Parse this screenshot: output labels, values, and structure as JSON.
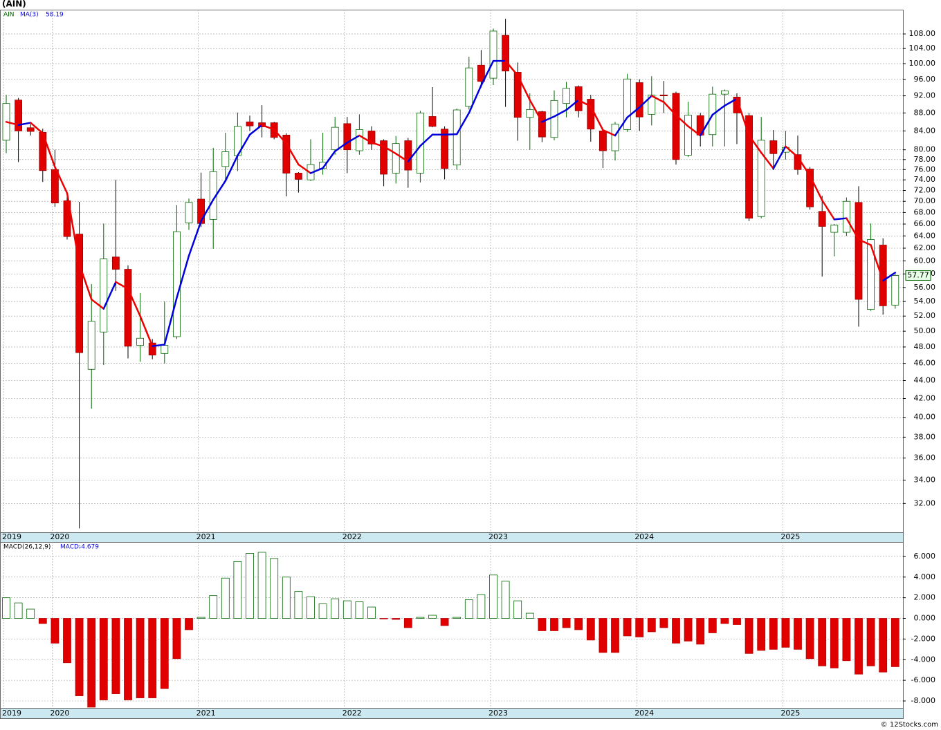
{
  "footer": "© 12Stocks.com",
  "chart_data": [
    {
      "type": "candlestick",
      "title": "(AIN)",
      "ticker": "AIN",
      "log_scale": true,
      "grid": true,
      "up_color": "#006400",
      "down_color": "#e00000",
      "ma_up_color": "#0000dd",
      "ma_down_color": "#ee0000",
      "categories": [
        "2019",
        null,
        null,
        null,
        "2020",
        null,
        null,
        null,
        null,
        null,
        null,
        null,
        null,
        null,
        null,
        null,
        "2021",
        null,
        null,
        null,
        null,
        null,
        null,
        null,
        null,
        null,
        null,
        null,
        "2022",
        null,
        null,
        null,
        null,
        null,
        null,
        null,
        null,
        null,
        null,
        null,
        "2023",
        null,
        null,
        null,
        null,
        null,
        null,
        null,
        null,
        null,
        null,
        null,
        "2024",
        null,
        null,
        null,
        null,
        null,
        null,
        null,
        null,
        null,
        null,
        null,
        "2025",
        null,
        null,
        null,
        null,
        null,
        null,
        null,
        null,
        null
      ],
      "open": [
        82,
        91,
        84.7,
        83.7,
        76,
        70.1,
        64.3,
        45.3,
        49.9,
        60.6,
        58.7,
        48.2,
        48.5,
        47.2,
        49.3,
        66.2,
        70.4,
        66.8,
        76.6,
        78.8,
        86,
        85.8,
        85.8,
        83.1,
        75.3,
        74,
        76.2,
        80,
        85.6,
        79.8,
        84,
        81.9,
        75.3,
        81.9,
        75.3,
        87.2,
        84.4,
        76.9,
        89.5,
        99.6,
        96.3,
        107.6,
        97.8,
        87,
        88.3,
        82.6,
        90.2,
        94.2,
        91.2,
        84,
        79.8,
        84.3,
        95.2,
        87.7,
        92.2,
        92.6,
        78.9,
        87.4,
        83.2,
        92.4,
        91.7,
        87.4,
        67.3,
        81.9,
        79.5,
        79,
        76.1,
        68.2,
        64.6,
        64.6,
        69.8,
        52.9,
        62.5,
        53.5
      ],
      "high": [
        92.2,
        91.5,
        85.5,
        84.5,
        80,
        71,
        69.9,
        56.5,
        66.1,
        74,
        59.3,
        55.2,
        49,
        54,
        69.3,
        70.5,
        75.4,
        80.4,
        83.6,
        88.1,
        87.4,
        89.8,
        86,
        83.5,
        75.5,
        82.2,
        83.6,
        87.1,
        87.1,
        87.7,
        85,
        82.2,
        82.9,
        82.5,
        88.5,
        94.1,
        85,
        89,
        101.8,
        103.6,
        109.5,
        112.3,
        100.3,
        92.6,
        88.5,
        93.3,
        95.4,
        94.5,
        92.2,
        84.5,
        86,
        97.4,
        96,
        96.8,
        95.6,
        93,
        90.6,
        88,
        94.2,
        93.5,
        92.6,
        88,
        87.1,
        84.2,
        84,
        83,
        76.5,
        71,
        66,
        70.7,
        72.8,
        66.1,
        63.6,
        58
      ],
      "low": [
        79.3,
        77.5,
        83,
        73.6,
        69,
        63.4,
        30,
        40.9,
        45.8,
        55.5,
        46.6,
        46.2,
        46.5,
        46,
        49,
        65,
        65.5,
        61.9,
        74.1,
        75.7,
        84,
        82.6,
        82.2,
        70.9,
        71.6,
        73.8,
        75,
        79,
        75.3,
        79,
        80,
        72.8,
        73.3,
        72.5,
        73.5,
        84.8,
        74.1,
        76,
        88.8,
        94,
        94.6,
        89.4,
        81.9,
        80,
        81.6,
        82,
        87,
        87,
        81.7,
        76.3,
        77.8,
        83.8,
        84,
        85.2,
        88,
        77,
        78.5,
        80.7,
        80.7,
        80.7,
        81.2,
        66.5,
        67,
        75.9,
        78,
        75,
        68.5,
        57.6,
        60.7,
        64,
        50.6,
        52.7,
        52.2,
        53
      ],
      "close": [
        90.2,
        84,
        83.9,
        75.8,
        69.7,
        63.9,
        47.3,
        51.3,
        60.3,
        58.7,
        48.1,
        49.1,
        47,
        48.2,
        64.7,
        69.8,
        66.1,
        75.6,
        79.6,
        85,
        85.1,
        84.9,
        82.6,
        75.3,
        74.1,
        77,
        77.5,
        84.8,
        80,
        84.3,
        81.2,
        75.1,
        81.3,
        75.9,
        88,
        85,
        76.2,
        88.7,
        98.9,
        95.5,
        108.8,
        98.1,
        87,
        88.8,
        82.7,
        90.9,
        93.8,
        88.5,
        84.4,
        79.8,
        85.5,
        96.1,
        87.1,
        92.2,
        92,
        78,
        87.5,
        83.1,
        92.4,
        93.2,
        88,
        67,
        82,
        79.2,
        80.5,
        76,
        69,
        65.6,
        65.8,
        70,
        54.3,
        63.4,
        53.4,
        57.77
      ],
      "ma": {
        "name": "MA(3)",
        "values": [
          86,
          85.3,
          85.8,
          83.5,
          76.5,
          71.5,
          59.5,
          54.3,
          53,
          56.8,
          55.8,
          52,
          48.1,
          48.3,
          54.5,
          60.8,
          66.5,
          70.3,
          73.8,
          78.8,
          83.2,
          85.3,
          84.3,
          81.3,
          77,
          75.3,
          76.3,
          79.7,
          81.5,
          83,
          81.5,
          80.7,
          79.2,
          77.6,
          80.8,
          83.2,
          83.2,
          83.3,
          88,
          94.5,
          100.7,
          100.7,
          97,
          91,
          86,
          87.2,
          88.7,
          91,
          89.5,
          84.2,
          83,
          87,
          89.3,
          92,
          90.5,
          87.5,
          85,
          83,
          87.6,
          89.7,
          91.3,
          83,
          79.4,
          76.2,
          80.7,
          78.5,
          74.8,
          70.2,
          66.8,
          67,
          63.4,
          62.5,
          57,
          58.19
        ]
      },
      "ylim": [
        29.7,
        115
      ],
      "yticks": [
        {
          "value": 32,
          "label": "32.00"
        },
        {
          "value": 34,
          "label": "34.00"
        },
        {
          "value": 36,
          "label": "36.00"
        },
        {
          "value": 38,
          "label": "38.00"
        },
        {
          "value": 40,
          "label": "40.00"
        },
        {
          "value": 42,
          "label": "42.00"
        },
        {
          "value": 44,
          "label": "44.00"
        },
        {
          "value": 46,
          "label": "46.00"
        },
        {
          "value": 48,
          "label": "48.00"
        },
        {
          "value": 50,
          "label": "50.00"
        },
        {
          "value": 52,
          "label": "52.00"
        },
        {
          "value": 54,
          "label": "54.00"
        },
        {
          "value": 56,
          "label": "56.00"
        },
        {
          "value": 58,
          "label": "58.00"
        },
        {
          "value": 60,
          "label": "60.00"
        },
        {
          "value": 62,
          "label": "62.00"
        },
        {
          "value": 64,
          "label": "64.00"
        },
        {
          "value": 66,
          "label": "66.00"
        },
        {
          "value": 68,
          "label": "68.00"
        },
        {
          "value": 70,
          "label": "70.00"
        },
        {
          "value": 72,
          "label": "72.00"
        },
        {
          "value": 74,
          "label": "74.00"
        },
        {
          "value": 76,
          "label": "76.00"
        },
        {
          "value": 78,
          "label": "78.00"
        },
        {
          "value": 80,
          "label": "80.00"
        },
        {
          "value": 84,
          "label": "84.00"
        },
        {
          "value": 88,
          "label": "88.00"
        },
        {
          "value": 92,
          "label": "92.00"
        },
        {
          "value": 96,
          "label": "96.00"
        },
        {
          "value": 100,
          "label": "100.00"
        },
        {
          "value": 104,
          "label": "104.00"
        },
        {
          "value": 108,
          "label": "108.00"
        }
      ]
    },
    {
      "type": "bar",
      "name": "MACD(26,12,9)",
      "value_prefix": "MACD:",
      "grid": true,
      "pos_color": "#006400",
      "neg_color": "#e00000",
      "categories": [
        "2019",
        null,
        null,
        null,
        "2020",
        null,
        null,
        null,
        null,
        null,
        null,
        null,
        null,
        null,
        null,
        null,
        "2021",
        null,
        null,
        null,
        null,
        null,
        null,
        null,
        null,
        null,
        null,
        null,
        "2022",
        null,
        null,
        null,
        null,
        null,
        null,
        null,
        null,
        null,
        null,
        null,
        "2023",
        null,
        null,
        null,
        null,
        null,
        null,
        null,
        null,
        null,
        null,
        null,
        "2024",
        null,
        null,
        null,
        null,
        null,
        null,
        null,
        null,
        null,
        null,
        null,
        "2025",
        null,
        null,
        null,
        null,
        null,
        null,
        null,
        null,
        null
      ],
      "values": [
        2.0,
        1.5,
        0.9,
        -0.5,
        -2.4,
        -4.3,
        -7.5,
        -8.6,
        -7.9,
        -7.3,
        -7.9,
        -7.7,
        -7.7,
        -6.8,
        -3.9,
        -1.1,
        0.1,
        2.2,
        3.9,
        5.5,
        6.3,
        6.4,
        5.8,
        4.0,
        2.6,
        2.1,
        1.4,
        1.9,
        1.7,
        1.6,
        1.1,
        -0.05,
        -0.1,
        -0.9,
        0.1,
        0.3,
        -0.7,
        0.1,
        1.8,
        2.3,
        4.2,
        3.6,
        1.7,
        0.5,
        -1.2,
        -1.2,
        -0.9,
        -1.1,
        -2.1,
        -3.3,
        -3.3,
        -1.7,
        -1.8,
        -1.3,
        -0.9,
        -2.4,
        -2.2,
        -2.5,
        -1.4,
        -0.5,
        -0.6,
        -3.4,
        -3.1,
        -3.0,
        -2.8,
        -3.0,
        -3.9,
        -4.6,
        -4.8,
        -4.1,
        -5.4,
        -4.6,
        -5.2,
        -4.679
      ],
      "ylim": [
        -8.67,
        7.4
      ],
      "yticks": [
        {
          "value": 6,
          "label": "6.000"
        },
        {
          "value": 4,
          "label": "4.000"
        },
        {
          "value": 2,
          "label": "2.000"
        },
        {
          "value": 0,
          "label": "0.000"
        },
        {
          "value": -2,
          "label": "-2.000"
        },
        {
          "value": -4,
          "label": "-4.000"
        },
        {
          "value": -6,
          "label": "-6.000"
        },
        {
          "value": -8,
          "label": "-8.000"
        }
      ]
    }
  ]
}
